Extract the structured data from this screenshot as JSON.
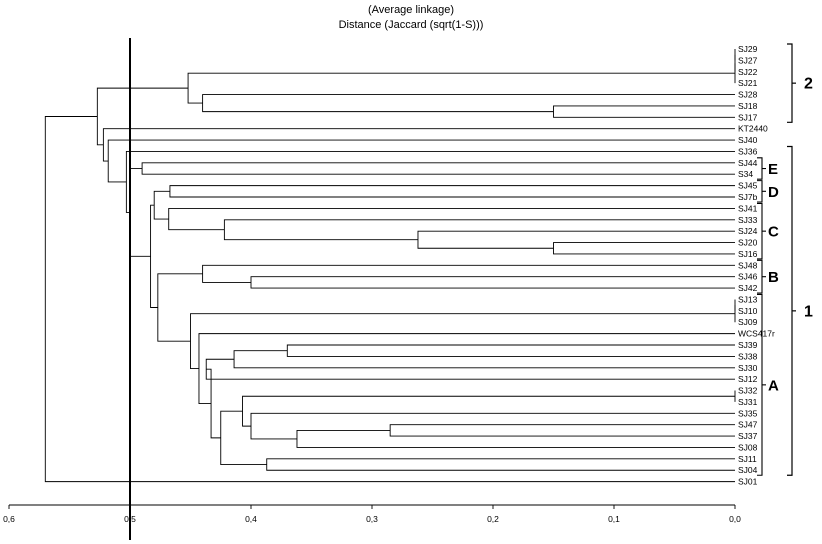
{
  "title_line1": "(Average linkage)",
  "title_line2": "Distance (Jaccard (sqrt(1-S)))",
  "axis": {
    "min": 0,
    "max": 0.6,
    "ticks": [
      0.6,
      0.5,
      0.4,
      0.3,
      0.2,
      0.1,
      0.0
    ],
    "tick_labels": [
      "0,6",
      "0,5",
      "0,4",
      "0,3",
      "0,2",
      "0,1",
      "0,0"
    ],
    "cutoff": 0.5
  },
  "leaves": [
    "SJ29",
    "SJ27",
    "SJ22",
    "SJ21",
    "SJ28",
    "SJ18",
    "SJ17",
    "KT2440",
    "SJ40",
    "SJ36",
    "SJ44",
    "S34",
    "SJ45",
    "SJ7b",
    "SJ41",
    "SJ33",
    "SJ24",
    "SJ20",
    "SJ16",
    "SJ48",
    "SJ46",
    "SJ42",
    "SJ13",
    "SJ10",
    "SJ09",
    "WCS417r",
    "SJ39",
    "SJ38",
    "SJ30",
    "SJ12",
    "SJ32",
    "SJ31",
    "SJ35",
    "SJ47",
    "SJ37",
    "SJ08",
    "SJ11",
    "SJ04",
    "SJ01"
  ],
  "merges": [
    {
      "id": "n1",
      "a": "SJ29",
      "b": "SJ27",
      "h": 0.0
    },
    {
      "id": "n2",
      "a": "n1",
      "b": "SJ22",
      "h": 0.0
    },
    {
      "id": "n3",
      "a": "n2",
      "b": "SJ21",
      "h": 0.0
    },
    {
      "id": "n4",
      "a": "SJ18",
      "b": "SJ17",
      "h": 0.15
    },
    {
      "id": "n5",
      "a": "SJ28",
      "b": "n4",
      "h": 0.44
    },
    {
      "id": "n6",
      "a": "n3",
      "b": "n5",
      "h": 0.452
    },
    {
      "id": "n7",
      "a": "SJ44",
      "b": "S34",
      "h": 0.49
    },
    {
      "id": "n8",
      "a": "SJ45",
      "b": "SJ7b",
      "h": 0.467
    },
    {
      "id": "n9",
      "a": "SJ20",
      "b": "SJ16",
      "h": 0.15
    },
    {
      "id": "n10",
      "a": "SJ24",
      "b": "n9",
      "h": 0.262
    },
    {
      "id": "n11",
      "a": "SJ33",
      "b": "n10",
      "h": 0.422
    },
    {
      "id": "n12",
      "a": "SJ41",
      "b": "n11",
      "h": 0.468
    },
    {
      "id": "n13",
      "a": "n8",
      "b": "n12",
      "h": 0.48
    },
    {
      "id": "n14",
      "a": "SJ46",
      "b": "SJ42",
      "h": 0.4
    },
    {
      "id": "n15",
      "a": "SJ48",
      "b": "n14",
      "h": 0.44
    },
    {
      "id": "n16",
      "a": "SJ13",
      "b": "SJ10",
      "h": 0.0
    },
    {
      "id": "n17",
      "a": "n16",
      "b": "SJ09",
      "h": 0.0
    },
    {
      "id": "n18",
      "a": "SJ39",
      "b": "SJ38",
      "h": 0.37
    },
    {
      "id": "n19",
      "a": "n18",
      "b": "SJ30",
      "h": 0.414
    },
    {
      "id": "n20",
      "a": "n19",
      "b": "SJ12",
      "h": 0.437
    },
    {
      "id": "n21",
      "a": "SJ47",
      "b": "SJ37",
      "h": 0.285
    },
    {
      "id": "n22",
      "a": "n21",
      "b": "SJ08",
      "h": 0.362
    },
    {
      "id": "n23",
      "a": "SJ35",
      "b": "n22",
      "h": 0.4
    },
    {
      "id": "n24",
      "a": "SJ32",
      "b": "SJ31",
      "h": 0.0
    },
    {
      "id": "n25",
      "a": "n24",
      "b": "n23",
      "h": 0.407
    },
    {
      "id": "n26",
      "a": "SJ11",
      "b": "SJ04",
      "h": 0.387
    },
    {
      "id": "n27",
      "a": "n25",
      "b": "n26",
      "h": 0.425
    },
    {
      "id": "n28",
      "a": "n20",
      "b": "n27",
      "h": 0.433
    },
    {
      "id": "n29",
      "a": "WCS417r",
      "b": "n28",
      "h": 0.443
    },
    {
      "id": "n30",
      "a": "n17",
      "b": "n29",
      "h": 0.45
    },
    {
      "id": "n31",
      "a": "n15",
      "b": "n30",
      "h": 0.477
    },
    {
      "id": "n32",
      "a": "n13",
      "b": "n31",
      "h": 0.483
    },
    {
      "id": "n33",
      "a": "n7",
      "b": "n32",
      "h": 0.5
    },
    {
      "id": "n34",
      "a": "SJ36",
      "b": "n33",
      "h": 0.503
    },
    {
      "id": "n35",
      "a": "SJ40",
      "b": "n34",
      "h": 0.518
    },
    {
      "id": "n36",
      "a": "KT2440",
      "b": "n35",
      "h": 0.522
    },
    {
      "id": "n37",
      "a": "n6",
      "b": "n36",
      "h": 0.527
    },
    {
      "id": "n38",
      "a": "n37",
      "b": "SJ01",
      "h": 0.57
    }
  ],
  "groups": [
    {
      "label": "2",
      "from": "SJ29",
      "to": "SJ17",
      "style": "big"
    },
    {
      "label": "1",
      "from": "SJ36",
      "to": "SJ04",
      "style": "big"
    },
    {
      "label": "E",
      "from": "SJ44",
      "to": "S34",
      "style": "small"
    },
    {
      "label": "D",
      "from": "SJ45",
      "to": "SJ7b",
      "style": "small"
    },
    {
      "label": "C",
      "from": "SJ41",
      "to": "SJ16",
      "style": "small"
    },
    {
      "label": "B",
      "from": "SJ48",
      "to": "SJ42",
      "style": "small"
    },
    {
      "label": "A",
      "from": "SJ13",
      "to": "SJ04",
      "style": "small"
    }
  ],
  "colors": {
    "lines": "#000000",
    "cutoff": "#000000"
  }
}
